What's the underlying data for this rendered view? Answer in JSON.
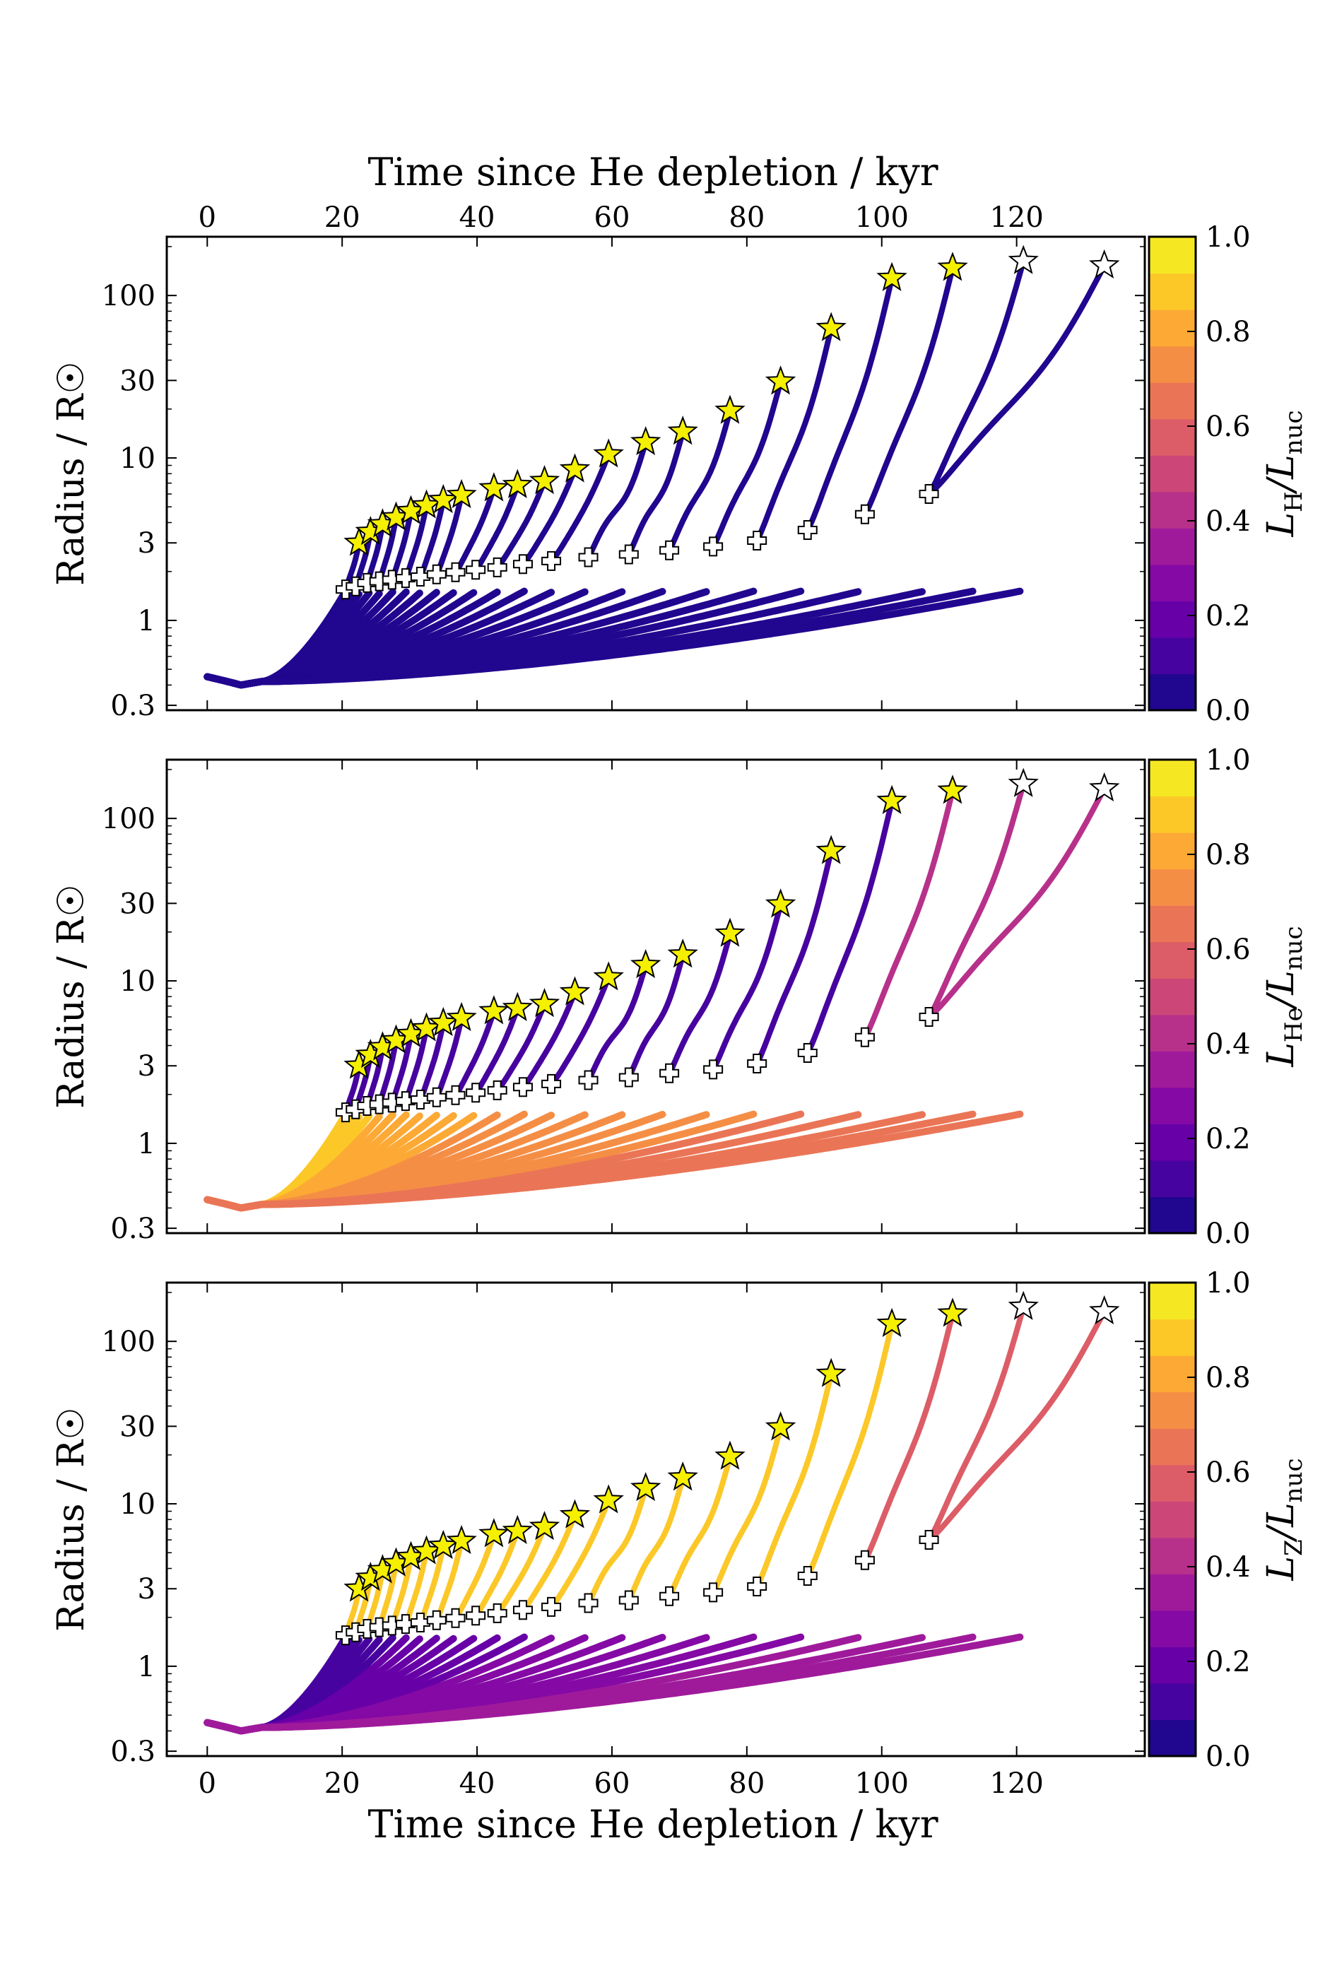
{
  "chart_data": {
    "type": "line",
    "figure_kind": "stacked panels of radius vs. time tracks colored by luminosity fraction",
    "top_xlabel": "Time since He depletion / kyr",
    "xlabel": "Time since He depletion / kyr",
    "xlim": [
      -6,
      139
    ],
    "xticks": [
      "0",
      "20",
      "40",
      "60",
      "80",
      "100",
      "120"
    ],
    "xtick_values": [
      0,
      20,
      40,
      60,
      80,
      100,
      120
    ],
    "ylabel": "Radius / R☉",
    "yscale": "log",
    "ylim": [
      0.28,
      230
    ],
    "yticks": [
      "0.3",
      "1",
      "3",
      "10",
      "30",
      "100"
    ],
    "ytick_values": [
      0.3,
      1,
      3,
      10,
      30,
      100
    ],
    "track_count": 24,
    "track_turn_off_times_kyr": [
      20.5,
      21.5,
      22.8,
      24.2,
      25.8,
      27.6,
      29.6,
      31.8,
      34.2,
      36.8,
      39.8,
      43.2,
      47.0,
      51.3,
      56.2,
      61.7,
      67.6,
      74.2,
      81.0,
      88.0,
      96.8,
      106.3,
      113.5,
      120.5
    ],
    "star_markers": [
      {
        "t": 22.5,
        "r": 3.0,
        "filled": true
      },
      {
        "t": 24.2,
        "r": 3.5,
        "filled": true
      },
      {
        "t": 26.0,
        "r": 3.9,
        "filled": true
      },
      {
        "t": 28.0,
        "r": 4.3,
        "filled": true
      },
      {
        "t": 30.2,
        "r": 4.7,
        "filled": true
      },
      {
        "t": 32.5,
        "r": 5.1,
        "filled": true
      },
      {
        "t": 35.0,
        "r": 5.5,
        "filled": true
      },
      {
        "t": 37.7,
        "r": 5.9,
        "filled": true
      },
      {
        "t": 42.5,
        "r": 6.5,
        "filled": true
      },
      {
        "t": 46.0,
        "r": 6.8,
        "filled": true
      },
      {
        "t": 50.0,
        "r": 7.2,
        "filled": true
      },
      {
        "t": 54.5,
        "r": 8.5,
        "filled": true
      },
      {
        "t": 59.5,
        "r": 10.5,
        "filled": true
      },
      {
        "t": 65.0,
        "r": 12.5,
        "filled": true
      },
      {
        "t": 70.5,
        "r": 14.5,
        "filled": true
      },
      {
        "t": 77.5,
        "r": 19.5,
        "filled": true
      },
      {
        "t": 85.0,
        "r": 29.5,
        "filled": true
      },
      {
        "t": 92.5,
        "r": 63.0,
        "filled": true
      },
      {
        "t": 101.5,
        "r": 128.0,
        "filled": true
      },
      {
        "t": 110.5,
        "r": 148.0,
        "filled": true
      },
      {
        "t": 121.0,
        "r": 163.0,
        "filled": false
      },
      {
        "t": 133.0,
        "r": 153.0,
        "filled": false
      }
    ],
    "cross_markers": [
      {
        "t": 20.5,
        "r": 1.55
      },
      {
        "t": 22.0,
        "r": 1.62
      },
      {
        "t": 23.7,
        "r": 1.7
      },
      {
        "t": 25.5,
        "r": 1.74
      },
      {
        "t": 27.4,
        "r": 1.78
      },
      {
        "t": 29.4,
        "r": 1.82
      },
      {
        "t": 31.6,
        "r": 1.86
      },
      {
        "t": 34.0,
        "r": 1.92
      },
      {
        "t": 36.8,
        "r": 1.98
      },
      {
        "t": 39.8,
        "r": 2.05
      },
      {
        "t": 43.0,
        "r": 2.12
      },
      {
        "t": 46.8,
        "r": 2.22
      },
      {
        "t": 51.0,
        "r": 2.32
      },
      {
        "t": 56.5,
        "r": 2.45
      },
      {
        "t": 62.5,
        "r": 2.55
      },
      {
        "t": 68.5,
        "r": 2.7
      },
      {
        "t": 75.0,
        "r": 2.85
      },
      {
        "t": 81.5,
        "r": 3.1
      },
      {
        "t": 89.0,
        "r": 3.6
      },
      {
        "t": 97.5,
        "r": 4.5
      },
      {
        "t": 107.0,
        "r": 6.0
      }
    ],
    "colormap": {
      "name": "plasma",
      "levels": 13,
      "stops": [
        "#0d0887",
        "#41049d",
        "#6a00a8",
        "#8f0da4",
        "#b12a90",
        "#cc4778",
        "#e16462",
        "#f2844b",
        "#fca636",
        "#fcce25",
        "#f0f921"
      ]
    },
    "panels": [
      {
        "name": "hydrogen",
        "colorbar_label": "L_H/L_nuc",
        "colorbar_label_main": "L",
        "colorbar_label_sub": "H",
        "colorbar_label_den": "/L",
        "colorbar_label_den_sub": "nuc",
        "colorbar_ticks": [
          "0.0",
          "0.2",
          "0.4",
          "0.6",
          "0.8",
          "1.0"
        ],
        "colorbar_range": [
          0,
          1
        ],
        "track_color_fraction": {
          "bulk": 0.02,
          "upper_branch": 0.02,
          "lower_branch": 0.02
        }
      },
      {
        "name": "helium",
        "colorbar_label": "L_He/L_nuc",
        "colorbar_label_main": "L",
        "colorbar_label_sub": "He",
        "colorbar_label_den": "/L",
        "colorbar_label_den_sub": "nuc",
        "colorbar_ticks": [
          "0.0",
          "0.2",
          "0.4",
          "0.6",
          "0.8",
          "1.0"
        ],
        "colorbar_range": [
          0,
          1
        ],
        "track_color_fraction": {
          "bulk": 0.88,
          "upper_branch": 0.1,
          "lower_branch": 0.45
        }
      },
      {
        "name": "metals",
        "colorbar_label": "L_Z/L_nuc",
        "colorbar_label_main": "L",
        "colorbar_label_sub": "Z",
        "colorbar_label_den": "/L",
        "colorbar_label_den_sub": "nuc",
        "colorbar_ticks": [
          "0.0",
          "0.2",
          "0.4",
          "0.6",
          "0.8",
          "1.0"
        ],
        "colorbar_range": [
          0,
          1
        ],
        "track_color_fraction": {
          "bulk": 0.1,
          "upper_branch": 0.88,
          "lower_branch": 0.55
        }
      }
    ]
  }
}
